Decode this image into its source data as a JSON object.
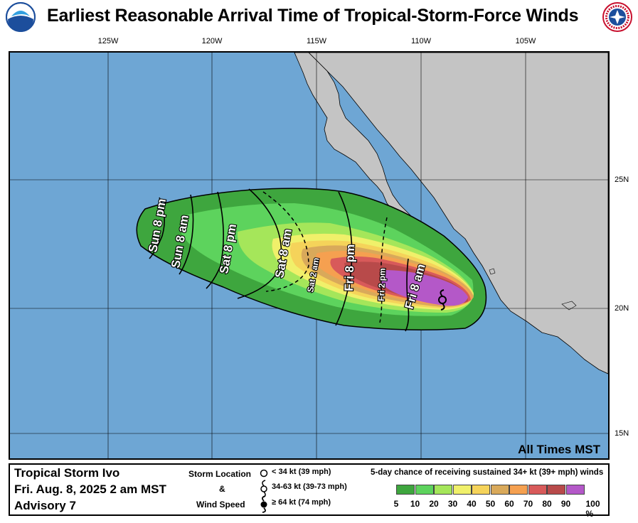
{
  "title": "Earliest Reasonable Arrival Time of Tropical-Storm-Force Winds",
  "logos": {
    "left": "noaa-logo-icon",
    "right": "nws-logo-icon"
  },
  "lon_ticks": [
    "125W",
    "120W",
    "115W",
    "110W",
    "105W"
  ],
  "lat_ticks": [
    "25N",
    "20N",
    "15N"
  ],
  "map_note": "All Times MST",
  "time_labels": [
    "Sun 8 pm",
    "Sun 8 am",
    "Sat 8 pm",
    "Sat 8 am",
    "Sat 2 am",
    "Fri 8 pm",
    "Fri 2 pm",
    "Fri 8 am"
  ],
  "legend": {
    "storm_name": "Tropical Storm Ivo",
    "datetime": "Fri. Aug. 8, 2025  2 am MST",
    "advisory": "Advisory 7",
    "storm_location_label": "Storm Location",
    "amp": "&",
    "wind_speed_label": "Wind Speed",
    "storm_items": [
      "< 34 kt (39 mph)",
      "34-63 kt (39-73 mph)",
      "≥ 64 kt (74 mph)"
    ],
    "prob_title": "5-day chance of receiving sustained 34+ kt (39+ mph) winds",
    "prob_labels": [
      "5",
      "10",
      "20",
      "30",
      "40",
      "50",
      "60",
      "70",
      "80",
      "90",
      "100 %"
    ],
    "prob_colors": [
      "#3ea63e",
      "#5dd35d",
      "#a5e65a",
      "#f0f06a",
      "#f5d35a",
      "#d9a95a",
      "#f5a050",
      "#d85a5a",
      "#b84a4a",
      "#b458c8"
    ]
  },
  "colors": {
    "ocean": "#6ea6d4",
    "land": "#c4c4c4"
  }
}
